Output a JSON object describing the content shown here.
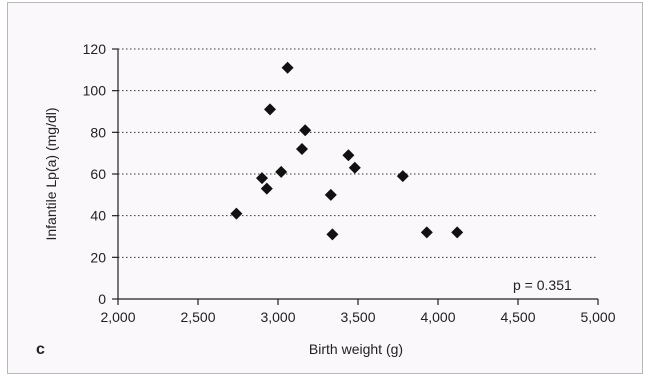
{
  "chart_data": {
    "type": "scatter",
    "panel_label": "c",
    "xlabel": "Birth weight (g)",
    "ylabel": "Infantile Lp(a) (mg/dl)",
    "xlim": [
      2000,
      5000
    ],
    "ylim": [
      0,
      120
    ],
    "x_ticks": [
      2000,
      2500,
      3000,
      3500,
      4000,
      4500,
      5000
    ],
    "x_tick_labels": [
      "2,000",
      "2,500",
      "3,000",
      "3,500",
      "4,000",
      "4,500",
      "5,000"
    ],
    "y_ticks": [
      0,
      20,
      40,
      60,
      80,
      100,
      120
    ],
    "y_tick_labels": [
      "0",
      "20",
      "40",
      "60",
      "80",
      "100",
      "120"
    ],
    "grid": "horizontal dotted",
    "marker": "diamond",
    "marker_color": "#111111",
    "annotation": "p = 0.351",
    "points": [
      {
        "x": 2740,
        "y": 41
      },
      {
        "x": 2900,
        "y": 58
      },
      {
        "x": 2930,
        "y": 53
      },
      {
        "x": 2950,
        "y": 91
      },
      {
        "x": 3020,
        "y": 61
      },
      {
        "x": 3060,
        "y": 111
      },
      {
        "x": 3150,
        "y": 72
      },
      {
        "x": 3170,
        "y": 81
      },
      {
        "x": 3330,
        "y": 50
      },
      {
        "x": 3340,
        "y": 31
      },
      {
        "x": 3440,
        "y": 69
      },
      {
        "x": 3480,
        "y": 63
      },
      {
        "x": 3780,
        "y": 59
      },
      {
        "x": 3930,
        "y": 32
      },
      {
        "x": 4120,
        "y": 32
      }
    ]
  }
}
